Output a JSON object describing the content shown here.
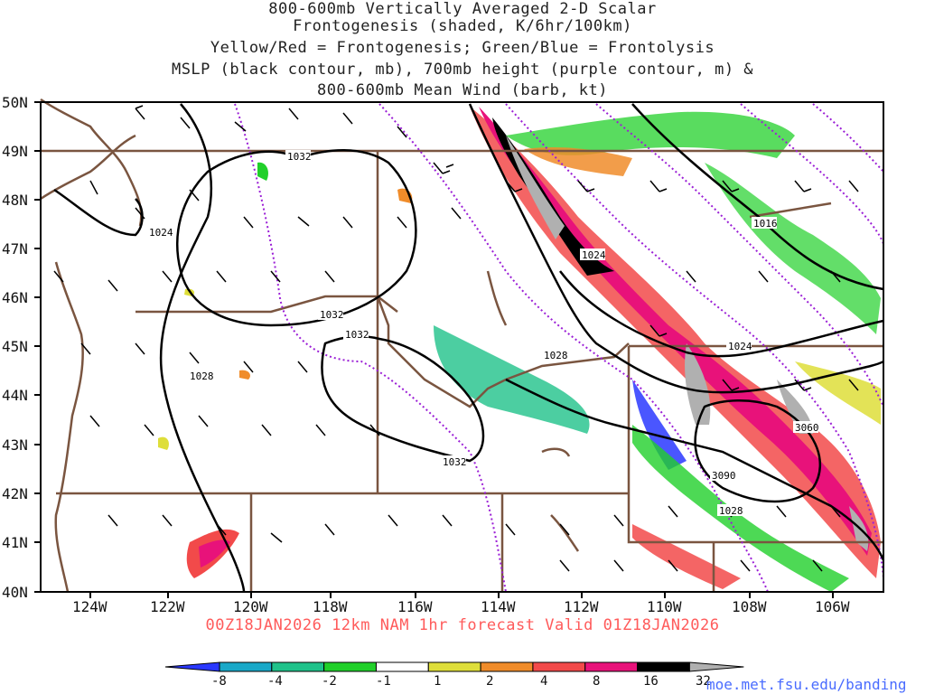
{
  "title_lines": [
    "800-600mb Vertically Averaged 2-D Scalar",
    "Frontogenesis (shaded, K/6hr/100km)",
    "Yellow/Red = Frontogenesis;  Green/Blue = Frontolysis",
    "MSLP (black contour, mb), 700mb height (purple contour, m) &",
    "800-600mb Mean Wind (barb, kt)"
  ],
  "valid_line": "00Z18JAN2026  12km  NAM  1hr  forecast  Valid  01Z18JAN2026",
  "credit": "moe.met.fsu.edu/banding",
  "lat_labels": [
    "50N",
    "49N",
    "48N",
    "47N",
    "46N",
    "45N",
    "44N",
    "43N",
    "42N",
    "41N",
    "40N"
  ],
  "lon_labels": [
    "124W",
    "122W",
    "120W",
    "118W",
    "116W",
    "114W",
    "112W",
    "110W",
    "108W",
    "106W"
  ],
  "colorbar": {
    "labels": [
      "-8",
      "-4",
      "-2",
      "-1",
      "1",
      "2",
      "4",
      "8",
      "16",
      "32"
    ],
    "colors": [
      "#2a38ff",
      "#19a8c8",
      "#1fc28a",
      "#21d02a",
      "#ffffff",
      "#dede3a",
      "#f08c2a",
      "#f24a4a",
      "#e8127a",
      "#000000",
      "#b0b0b0"
    ]
  },
  "contour_labels": {
    "mslp": [
      "1032",
      "1024",
      "1032",
      "1032",
      "1028",
      "1032",
      "1024",
      "1028",
      "1024",
      "1016",
      "1028"
    ],
    "height": [
      "3060",
      "3090"
    ]
  },
  "colors": {
    "state_lines": "#7a5540",
    "mslp": "#000000",
    "height": "#9b1fd6",
    "title": "#222222",
    "valid": "#ff5a5a",
    "credit": "#4a6cff"
  }
}
